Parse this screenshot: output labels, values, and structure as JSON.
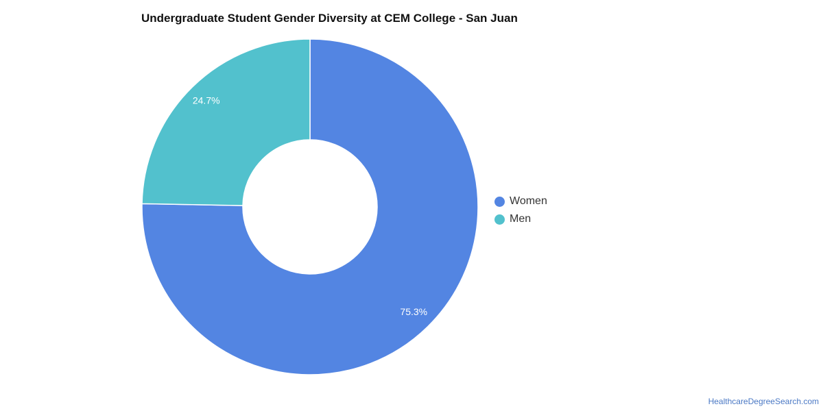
{
  "chart_data": {
    "type": "pie",
    "title": "Undergraduate Student Gender Diversity at CEM College - San Juan",
    "categories": [
      "Women",
      "Men"
    ],
    "values": [
      75.3,
      24.7
    ],
    "labels": [
      "75.3%",
      "24.7%"
    ],
    "colors": [
      "#5385e2",
      "#52c1cd"
    ],
    "donut": true,
    "legend_position": "right"
  },
  "legend": {
    "items": [
      {
        "label": "Women",
        "color": "#5385e2"
      },
      {
        "label": "Men",
        "color": "#52c1cd"
      }
    ]
  },
  "watermark": "HealthcareDegreeSearch.com"
}
